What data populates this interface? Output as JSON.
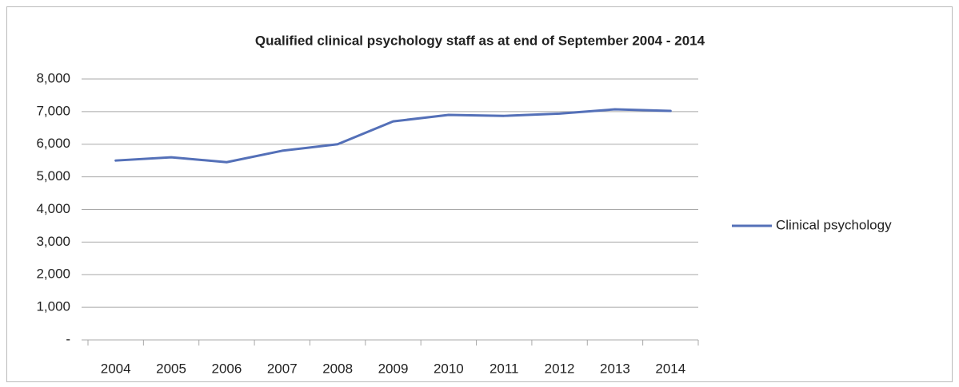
{
  "chart_data": {
    "type": "line",
    "title": "Qualified clinical psychology staff as at end of September 2004 - 2014",
    "categories": [
      "2004",
      "2005",
      "2006",
      "2007",
      "2008",
      "2009",
      "2010",
      "2011",
      "2012",
      "2013",
      "2014"
    ],
    "series": [
      {
        "name": "Clinical psychology",
        "color": "#5470b8",
        "values": [
          5500,
          5600,
          5450,
          5800,
          6000,
          6700,
          6900,
          6870,
          6940,
          7070,
          7020
        ]
      }
    ],
    "ylim": [
      0,
      8000
    ],
    "yticks": [
      {
        "value": 0,
        "label": "-"
      },
      {
        "value": 1000,
        "label": "1,000"
      },
      {
        "value": 2000,
        "label": "2,000"
      },
      {
        "value": 3000,
        "label": "3,000"
      },
      {
        "value": 4000,
        "label": "4,000"
      },
      {
        "value": 5000,
        "label": "5,000"
      },
      {
        "value": 6000,
        "label": "6,000"
      },
      {
        "value": 7000,
        "label": "7,000"
      },
      {
        "value": 8000,
        "label": "8,000"
      }
    ],
    "grid": true,
    "legend": "right"
  }
}
